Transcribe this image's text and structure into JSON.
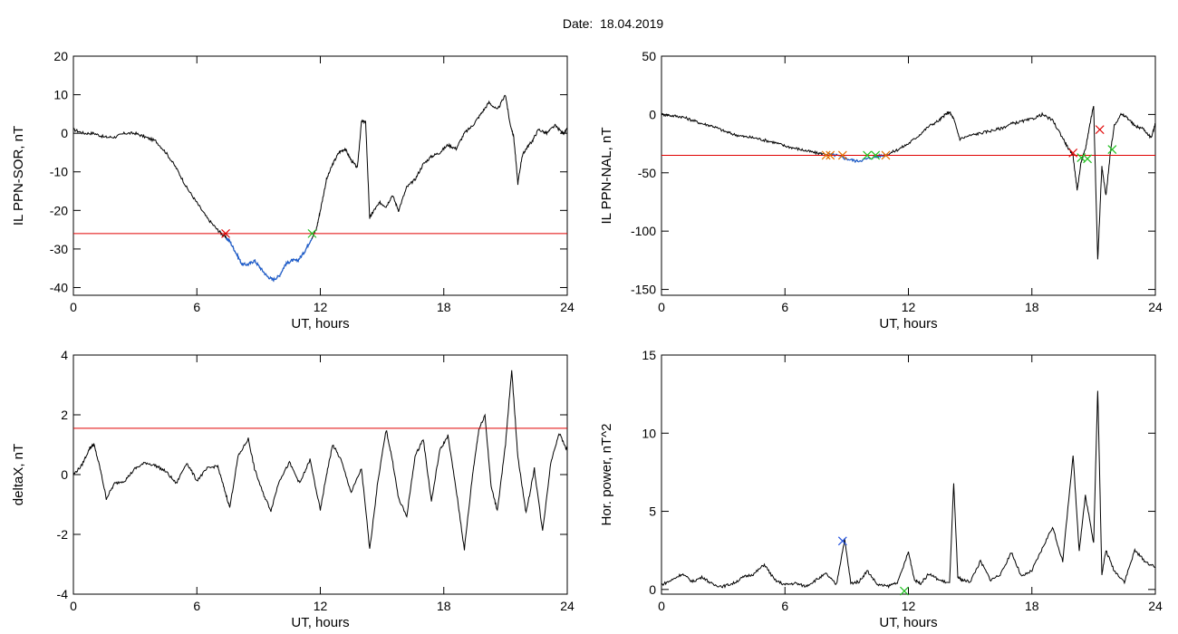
{
  "header": {
    "date_label": "Date:",
    "date_value": "18.04.2019"
  },
  "colors": {
    "trace": "#000000",
    "threshold": "#e00000",
    "selected": "#1f5fd0",
    "marker_start": "#e00000",
    "marker_end": "#20c020",
    "marker_orange": "#e07000",
    "marker_blue": "#2050e0",
    "frame": "#000000"
  },
  "chart_data": [
    {
      "id": "sor",
      "type": "line",
      "title": "",
      "xlabel": "UT, hours",
      "ylabel": "IL PPN-SOR, nT",
      "xlim": [
        0,
        24
      ],
      "ylim": [
        -42,
        20
      ],
      "x_ticks": [
        0,
        6,
        12,
        18,
        24
      ],
      "y_ticks": [
        -40,
        -30,
        -20,
        -10,
        0,
        10,
        20
      ],
      "threshold": -26,
      "series": [
        {
          "x": [
            0,
            0.5,
            1,
            1.5,
            2,
            2.5,
            3,
            3.5,
            4,
            4.5,
            5,
            5.5,
            6,
            6.5,
            7,
            7.3,
            7.6,
            7.9,
            8.2,
            8.5,
            8.8,
            9.1,
            9.4,
            9.7,
            10,
            10.3,
            10.6,
            10.9,
            11.2,
            11.5,
            11.8,
            12,
            12.3,
            12.6,
            12.9,
            13.2,
            13.5,
            13.8,
            14,
            14.2,
            14.4,
            14.6,
            14.9,
            15.2,
            15.5,
            15.8,
            16.2,
            16.6,
            17,
            17.4,
            17.8,
            18.2,
            18.6,
            19,
            19.4,
            19.8,
            20.2,
            20.6,
            21,
            21.2,
            21.4,
            21.6,
            21.8,
            22,
            22.3,
            22.6,
            23,
            23.4,
            23.8,
            24
          ],
          "values": [
            1,
            0,
            0,
            -1,
            -1,
            0,
            0,
            -1,
            -2,
            -5,
            -9,
            -14,
            -18,
            -22,
            -25,
            -26.5,
            -28,
            -31,
            -34,
            -34,
            -33,
            -35,
            -37,
            -38,
            -37,
            -34,
            -33,
            -33,
            -31,
            -28,
            -25,
            -20,
            -12,
            -8,
            -5,
            -4,
            -7,
            -9,
            3,
            3,
            -22,
            -20,
            -18,
            -19,
            -16,
            -20,
            -14,
            -12,
            -8,
            -6,
            -5,
            -3,
            -4,
            0,
            2,
            5,
            8,
            6,
            10,
            3,
            -1,
            -13,
            -6,
            -4,
            -2,
            1,
            0,
            2,
            0,
            1
          ]
        }
      ],
      "markers": [
        {
          "x": 7.4,
          "y": -26,
          "color": "marker_start"
        },
        {
          "x": 11.6,
          "y": -26,
          "color": "marker_end"
        }
      ],
      "selected_range": [
        7.4,
        11.6
      ]
    },
    {
      "id": "nal",
      "type": "line",
      "title": "",
      "xlabel": "UT, hours",
      "ylabel": "IL PPN-NAL, nT",
      "xlim": [
        0,
        24
      ],
      "ylim": [
        -155,
        50
      ],
      "x_ticks": [
        0,
        6,
        12,
        18,
        24
      ],
      "y_ticks": [
        -150,
        -100,
        -50,
        0,
        50
      ],
      "threshold": -35,
      "series": [
        {
          "x": [
            0,
            0.5,
            1,
            1.5,
            2,
            2.5,
            3,
            3.5,
            4,
            4.5,
            5,
            5.5,
            6,
            6.5,
            7,
            7.5,
            8,
            8.5,
            9,
            9.5,
            10,
            10.5,
            11,
            11.5,
            12,
            12.5,
            13,
            13.5,
            13.8,
            14,
            14.2,
            14.5,
            15,
            15.5,
            16,
            16.5,
            17,
            17.5,
            18,
            18.5,
            19,
            19.5,
            19.8,
            20,
            20.2,
            20.4,
            20.6,
            20.8,
            21,
            21.2,
            21.4,
            21.6,
            21.8,
            22,
            22.3,
            22.6,
            23,
            23.4,
            23.8,
            24
          ],
          "values": [
            0,
            -1,
            -2,
            -5,
            -8,
            -10,
            -14,
            -17,
            -19,
            -20,
            -22,
            -24,
            -27,
            -29,
            -31,
            -33,
            -34,
            -35,
            -38,
            -40,
            -38,
            -36,
            -34,
            -30,
            -25,
            -18,
            -10,
            -5,
            0,
            2,
            -4,
            -21,
            -18,
            -16,
            -14,
            -12,
            -8,
            -6,
            -4,
            0,
            -5,
            -20,
            -30,
            -35,
            -65,
            -40,
            -30,
            -10,
            8,
            -125,
            -45,
            -70,
            -35,
            -10,
            0,
            -2,
            -10,
            -12,
            -20,
            -8
          ]
        }
      ],
      "markers": [
        {
          "x": 8.0,
          "y": -35,
          "color": "marker_orange"
        },
        {
          "x": 8.2,
          "y": -35,
          "color": "marker_orange"
        },
        {
          "x": 8.8,
          "y": -35,
          "color": "marker_orange"
        },
        {
          "x": 10.0,
          "y": -35,
          "color": "marker_end"
        },
        {
          "x": 10.4,
          "y": -35,
          "color": "marker_end"
        },
        {
          "x": 10.9,
          "y": -35,
          "color": "marker_orange"
        },
        {
          "x": 20.0,
          "y": -33,
          "color": "marker_start"
        },
        {
          "x": 20.4,
          "y": -37,
          "color": "marker_end"
        },
        {
          "x": 20.7,
          "y": -38,
          "color": "marker_end"
        },
        {
          "x": 21.3,
          "y": -13,
          "color": "marker_start"
        },
        {
          "x": 21.9,
          "y": -30,
          "color": "marker_end"
        }
      ],
      "selected_range": [
        7.9,
        11.0
      ]
    },
    {
      "id": "deltax",
      "type": "line",
      "title": "",
      "xlabel": "UT, hours",
      "ylabel": "deltaX, nT",
      "xlim": [
        0,
        24
      ],
      "ylim": [
        -4,
        4
      ],
      "x_ticks": [
        0,
        6,
        12,
        18,
        24
      ],
      "y_ticks": [
        -4,
        -2,
        0,
        2,
        4
      ],
      "threshold": 1.55,
      "series": [
        {
          "x": [
            0,
            0.4,
            0.8,
            1.0,
            1.3,
            1.6,
            2,
            2.5,
            3,
            3.5,
            4,
            4.5,
            5,
            5.5,
            6,
            6.5,
            7,
            7.3,
            7.6,
            8,
            8.5,
            8.8,
            9.2,
            9.6,
            10,
            10.5,
            11,
            11.5,
            12,
            12.3,
            12.6,
            13,
            13.5,
            14,
            14.4,
            14.8,
            15.2,
            15.5,
            15.8,
            16.2,
            16.6,
            17,
            17.4,
            17.8,
            18.2,
            18.6,
            19,
            19.4,
            19.7,
            20,
            20.3,
            20.6,
            21,
            21.3,
            21.6,
            22,
            22.4,
            22.8,
            23.2,
            23.6,
            24
          ],
          "values": [
            0,
            0.3,
            0.9,
            1.0,
            0.2,
            -0.8,
            -0.3,
            -0.2,
            0.2,
            0.4,
            0.3,
            0.1,
            -0.3,
            0.4,
            -0.2,
            0.2,
            0.3,
            -0.4,
            -1.1,
            0.6,
            1.2,
            0.2,
            -0.6,
            -1.2,
            -0.2,
            0.4,
            -0.3,
            0.5,
            -1.2,
            0.0,
            1.0,
            0.5,
            -0.6,
            0.2,
            -2.5,
            -0.2,
            1.5,
            0.5,
            -0.8,
            -1.4,
            0.6,
            1.2,
            -0.9,
            0.8,
            1.3,
            -0.5,
            -2.5,
            0.0,
            1.5,
            2.0,
            -0.4,
            -1.2,
            1.0,
            3.5,
            0.6,
            -1.3,
            0.2,
            -1.9,
            0.4,
            1.4,
            0.8
          ]
        }
      ],
      "markers": [],
      "selected_range": null
    },
    {
      "id": "power",
      "type": "line",
      "title": "",
      "xlabel": "UT, hours",
      "ylabel": "Hor. power, nT^2",
      "xlim": [
        0,
        24
      ],
      "ylim": [
        -0.3,
        15
      ],
      "x_ticks": [
        0,
        6,
        12,
        18,
        24
      ],
      "y_ticks": [
        0,
        5,
        10,
        15
      ],
      "threshold": null,
      "series": [
        {
          "x": [
            0,
            0.5,
            1,
            1.5,
            2,
            2.5,
            3,
            3.5,
            4,
            4.5,
            5,
            5.5,
            6,
            6.5,
            7,
            7.5,
            8,
            8.5,
            8.9,
            9.2,
            9.6,
            10,
            10.5,
            11,
            11.5,
            12,
            12.3,
            12.6,
            13,
            13.5,
            14,
            14.2,
            14.4,
            14.6,
            15,
            15.5,
            16,
            16.5,
            17,
            17.5,
            18,
            18.5,
            19,
            19.5,
            20,
            20.3,
            20.6,
            21,
            21.2,
            21.4,
            21.6,
            22,
            22.5,
            23,
            23.5,
            24
          ],
          "values": [
            0.3,
            0.6,
            1.0,
            0.5,
            0.8,
            0.3,
            0.2,
            0.4,
            0.8,
            1.0,
            1.6,
            0.6,
            0.3,
            0.4,
            0.2,
            0.6,
            1.0,
            0.3,
            3.2,
            0.4,
            0.5,
            1.2,
            0.3,
            0.2,
            0.5,
            2.4,
            0.6,
            0.4,
            1.0,
            0.6,
            0.4,
            6.8,
            0.8,
            0.6,
            0.5,
            1.8,
            0.6,
            1.0,
            2.4,
            0.8,
            1.2,
            2.6,
            4.0,
            1.8,
            8.6,
            2.5,
            6.0,
            3.0,
            12.8,
            1.0,
            2.5,
            1.2,
            0.5,
            2.5,
            1.8,
            1.4
          ]
        }
      ],
      "markers": [
        {
          "x": 8.8,
          "y": 3.1,
          "color": "marker_blue"
        },
        {
          "x": 11.8,
          "y": -0.1,
          "color": "marker_end"
        }
      ],
      "selected_range": null
    }
  ]
}
